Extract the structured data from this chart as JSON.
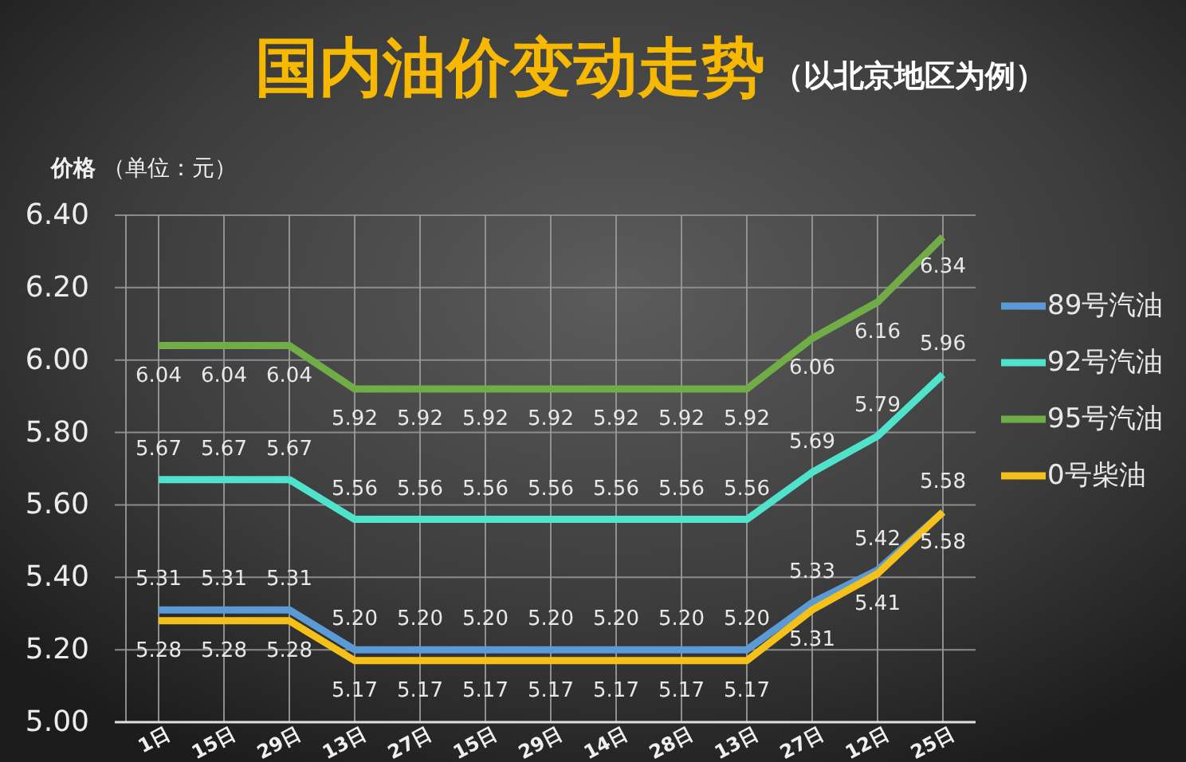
{
  "chart_data": {
    "type": "line",
    "title": "国内油价变动走势",
    "subtitle": "（以北京地区为例）",
    "ylabel": "价格 （单位：元）",
    "categories": [
      "1日",
      "15日",
      "29日",
      "13日",
      "27日",
      "15日",
      "29日",
      "14日",
      "28日",
      "13日",
      "27日",
      "12日",
      "25日"
    ],
    "series": [
      {
        "name": "89号汽油",
        "color": "#5b9bd5",
        "values": [
          5.31,
          5.31,
          5.31,
          5.2,
          5.2,
          5.2,
          5.2,
          5.2,
          5.2,
          5.2,
          5.33,
          5.42,
          5.58
        ],
        "value_labels": [
          "5.31",
          "5.31",
          "5.31",
          "5.20",
          "5.20",
          "5.20",
          "5.20",
          "5.20",
          "5.20",
          "5.20",
          "5.33",
          "5.42",
          "5.58"
        ]
      },
      {
        "name": "92号汽油",
        "color": "#4fe3cb",
        "values": [
          5.67,
          5.67,
          5.67,
          5.56,
          5.56,
          5.56,
          5.56,
          5.56,
          5.56,
          5.56,
          5.69,
          5.79,
          5.96
        ],
        "value_labels": [
          "5.67",
          "5.67",
          "5.67",
          "5.56",
          "5.56",
          "5.56",
          "5.56",
          "5.56",
          "5.56",
          "5.56",
          "5.69",
          "5.79",
          "5.96"
        ]
      },
      {
        "name": "95号汽油",
        "color": "#70ad47",
        "values": [
          6.04,
          6.04,
          6.04,
          5.92,
          5.92,
          5.92,
          5.92,
          5.92,
          5.92,
          5.92,
          6.06,
          6.16,
          6.34
        ],
        "value_labels": [
          "6.04",
          "6.04",
          "6.04",
          "5.92",
          "5.92",
          "5.92",
          "5.92",
          "5.92",
          "5.92",
          "5.92",
          "6.06",
          "6.16",
          "6.34"
        ]
      },
      {
        "name": "0号柴油",
        "color": "#f5c01a",
        "values": [
          5.28,
          5.28,
          5.28,
          5.17,
          5.17,
          5.17,
          5.17,
          5.17,
          5.17,
          5.17,
          5.31,
          5.41,
          5.58
        ],
        "value_labels": [
          "5.28",
          "5.28",
          "5.28",
          "5.17",
          "5.17",
          "5.17",
          "5.17",
          "5.17",
          "5.17",
          "5.17",
          "5.31",
          "5.41",
          "5.58"
        ]
      }
    ],
    "ylim": [
      5,
      6.4
    ],
    "yticks": [
      {
        "value": 5,
        "label": "5.00"
      },
      {
        "value": 5.2,
        "label": "5.20"
      },
      {
        "value": 5.4,
        "label": "5.40"
      },
      {
        "value": 5.6,
        "label": "5.60"
      },
      {
        "value": 5.8,
        "label": "5.80"
      },
      {
        "value": 6,
        "label": "6.00"
      },
      {
        "value": 6.2,
        "label": "6.20"
      },
      {
        "value": 6.4,
        "label": "6.40"
      }
    ],
    "grid": true,
    "legend": "right",
    "line_style": "solid"
  }
}
